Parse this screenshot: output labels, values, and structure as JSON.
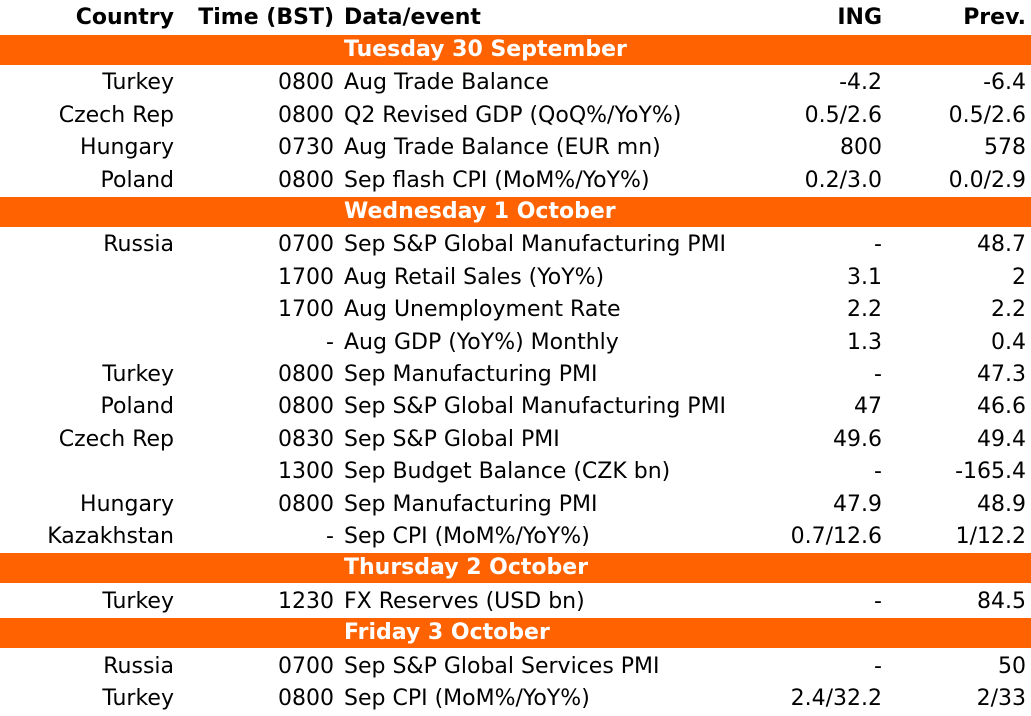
{
  "header": {
    "country": "Country",
    "time": "Time (BST)",
    "event": "Data/event",
    "ing": "ING",
    "prev": "Prev."
  },
  "sections": [
    {
      "title": "Tuesday 30 September",
      "rows": [
        {
          "country": "Turkey",
          "time": "0800",
          "event": "Aug Trade Balance",
          "ing": "-4.2",
          "prev": "-6.4"
        },
        {
          "country": "Czech Rep",
          "time": "0800",
          "event": "Q2 Revised GDP (QoQ%/YoY%)",
          "ing": "0.5/2.6",
          "prev": "0.5/2.6"
        },
        {
          "country": "Hungary",
          "time": "0730",
          "event": "Aug Trade Balance (EUR mn)",
          "ing": "800",
          "prev": "578"
        },
        {
          "country": "Poland",
          "time": "0800",
          "event": "Sep flash CPI (MoM%/YoY%)",
          "ing": "0.2/3.0",
          "prev": "0.0/2.9"
        }
      ]
    },
    {
      "title": "Wednesday 1 October",
      "rows": [
        {
          "country": "Russia",
          "time": "0700",
          "event": "Sep S&P Global Manufacturing PMI",
          "ing": "-",
          "prev": "48.7"
        },
        {
          "country": "",
          "time": "1700",
          "event": "Aug Retail Sales (YoY%)",
          "ing": "3.1",
          "prev": "2"
        },
        {
          "country": "",
          "time": "1700",
          "event": "Aug Unemployment Rate",
          "ing": "2.2",
          "prev": "2.2"
        },
        {
          "country": "",
          "time": "-",
          "event": "Aug GDP (YoY%) Monthly",
          "ing": "1.3",
          "prev": "0.4"
        },
        {
          "country": "Turkey",
          "time": "0800",
          "event": "Sep Manufacturing PMI",
          "ing": "-",
          "prev": "47.3"
        },
        {
          "country": "Poland",
          "time": "0800",
          "event": "Sep S&P Global Manufacturing PMI",
          "ing": "47",
          "prev": "46.6"
        },
        {
          "country": "Czech Rep",
          "time": "0830",
          "event": "Sep S&P Global PMI",
          "ing": "49.6",
          "prev": "49.4"
        },
        {
          "country": "",
          "time": "1300",
          "event": "Sep Budget Balance (CZK bn)",
          "ing": "-",
          "prev": "-165.4"
        },
        {
          "country": "Hungary",
          "time": "0800",
          "event": "Sep Manufacturing PMI",
          "ing": "47.9",
          "prev": "48.9"
        },
        {
          "country": "Kazakhstan",
          "time": "-",
          "event": "Sep CPI (MoM%/YoY%)",
          "ing": "0.7/12.6",
          "prev": "1/12.2"
        }
      ]
    },
    {
      "title": "Thursday 2 October",
      "rows": [
        {
          "country": "Turkey",
          "time": "1230",
          "event": "FX Reserves (USD bn)",
          "ing": "-",
          "prev": "84.5"
        }
      ]
    },
    {
      "title": "Friday 3 October",
      "rows": [
        {
          "country": "Russia",
          "time": "0700",
          "event": "Sep S&P Global Services PMI",
          "ing": "-",
          "prev": "50"
        },
        {
          "country": "Turkey",
          "time": "0800",
          "event": "Sep CPI (MoM%/YoY%)",
          "ing": "2.4/32.2",
          "prev": "2/33"
        }
      ]
    }
  ],
  "colors": {
    "section_background": "#ff6200",
    "section_text": "#ffffff"
  }
}
